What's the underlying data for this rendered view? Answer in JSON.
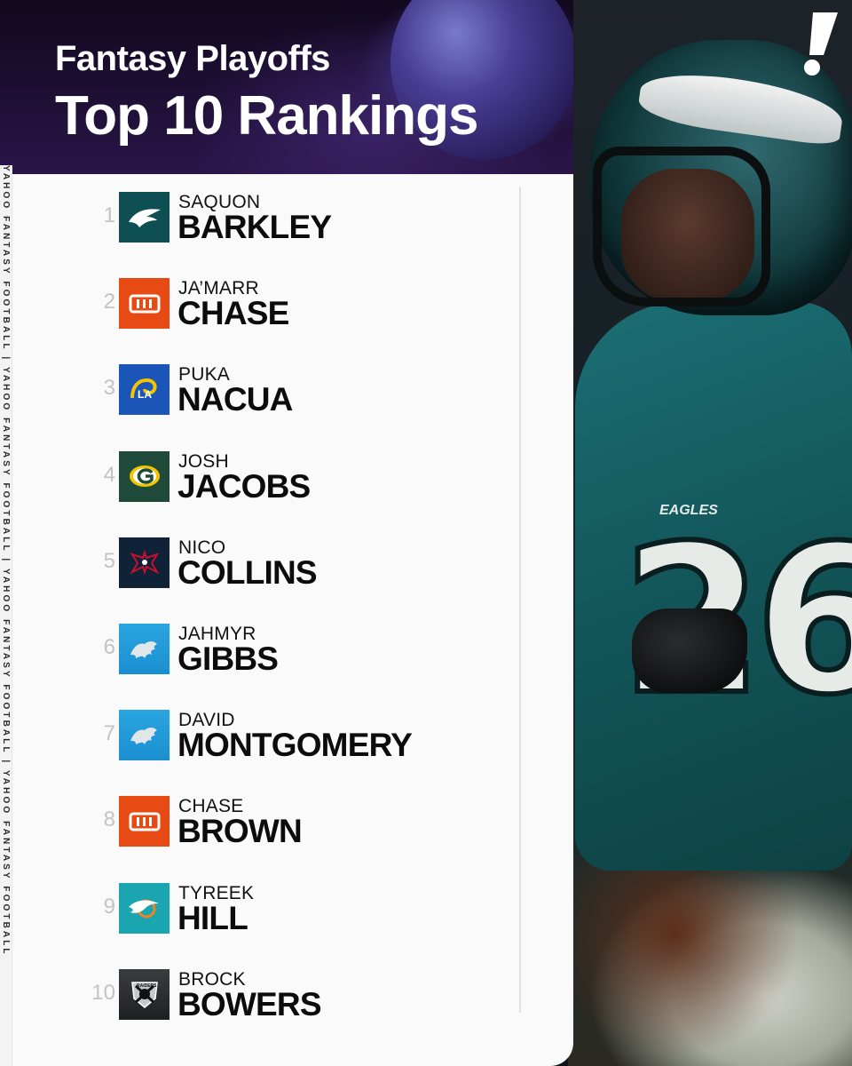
{
  "header": {
    "title_line1": "Fantasy Playoffs",
    "title_line2": "Top 10 Rankings"
  },
  "sidebar_text": "YAHOO FANTASY FOOTBALL | YAHOO FANTASY FOOTBALL | YAHOO FANTASY FOOTBALL | YAHOO FANTASY FOOTBALL",
  "photo": {
    "jersey_word": "EAGLES",
    "jersey_number": "26"
  },
  "rankings": [
    {
      "rank": "1",
      "first": "SAQUON",
      "last": "BARKLEY",
      "team_icon": "eagles-logo-icon",
      "color": "#0d4f52"
    },
    {
      "rank": "2",
      "first": "JA’MARR",
      "last": "CHASE",
      "team_icon": "bengals-logo-icon",
      "color": "#e84a14"
    },
    {
      "rank": "3",
      "first": "PUKA",
      "last": "NACUA",
      "team_icon": "rams-logo-icon",
      "color": "#1c55b8"
    },
    {
      "rank": "4",
      "first": "JOSH",
      "last": "JACOBS",
      "team_icon": "packers-logo-icon",
      "color": "#1f4a3a"
    },
    {
      "rank": "5",
      "first": "NICO",
      "last": "COLLINS",
      "team_icon": "texans-logo-icon",
      "color": "#0f2238"
    },
    {
      "rank": "6",
      "first": "JAHMYR",
      "last": "GIBBS",
      "team_icon": "lions-logo-icon",
      "color": "#1a8fd0"
    },
    {
      "rank": "7",
      "first": "DAVID",
      "last": "MONTGOMERY",
      "team_icon": "lions-logo-icon",
      "color": "#1a8fd0"
    },
    {
      "rank": "8",
      "first": "CHASE",
      "last": "BROWN",
      "team_icon": "bengals-logo-icon",
      "color": "#e84a14"
    },
    {
      "rank": "9",
      "first": "TYREEK",
      "last": "HILL",
      "team_icon": "dolphins-logo-icon",
      "color": "#1aa6b0"
    },
    {
      "rank": "10",
      "first": "BROCK",
      "last": "BOWERS",
      "team_icon": "raiders-logo-icon",
      "color": "#1f2022"
    }
  ]
}
